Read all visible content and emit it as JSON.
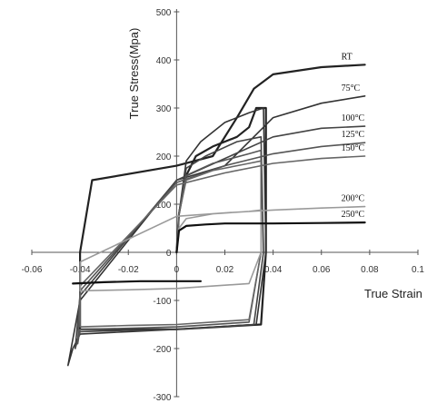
{
  "chart_data": {
    "type": "line",
    "title": "",
    "xlabel": "True Strain",
    "ylabel": "True Stress(Mpa)",
    "xlim": [
      -0.06,
      0.1
    ],
    "ylim": [
      -300,
      500
    ],
    "x_ticks": [
      -0.06,
      -0.04,
      -0.02,
      0,
      0.02,
      0.04,
      0.06,
      0.08,
      0.1
    ],
    "x_tick_labels": [
      "-0.06",
      "-0.04",
      "-0.02",
      "0",
      "0.02",
      "0.04",
      "0.06",
      "0.08",
      "0.1"
    ],
    "y_ticks": [
      -300,
      -200,
      -100,
      0,
      100,
      200,
      300,
      400,
      500
    ],
    "y_tick_labels": [
      "-300",
      "-200",
      "-100",
      "0",
      "100",
      "200",
      "300",
      "400",
      "500"
    ],
    "grid": false,
    "series": [
      {
        "name": "RT",
        "color": "#222222",
        "x": [
          0.0,
          0.001,
          0.004,
          0.008,
          0.015,
          0.025,
          0.03,
          0.033,
          0.037,
          0.037,
          0.035,
          0.0,
          -0.02,
          -0.04,
          -0.04,
          -0.035,
          0.0,
          0.015,
          0.025,
          0.032,
          0.04,
          0.06,
          0.078
        ],
        "y": [
          0.0,
          80.0,
          160.0,
          200.0,
          220.0,
          240.0,
          260.0,
          300.0,
          300.0,
          0.0,
          -150.0,
          -160.0,
          -160.0,
          -160.0,
          0.0,
          150.0,
          180.0,
          200.0,
          280.0,
          340.0,
          370.0,
          385.0,
          390.0
        ]
      },
      {
        "name": "75°C",
        "color": "#333333",
        "x": [
          0.0,
          0.001,
          0.004,
          0.01,
          0.02,
          0.03,
          0.036,
          0.037,
          0.033,
          0.0,
          -0.02,
          -0.04,
          -0.043,
          -0.045,
          -0.04,
          0.0,
          0.02,
          0.03,
          0.04,
          0.06,
          0.078
        ],
        "y": [
          0.0,
          80.0,
          190.0,
          230.0,
          270.0,
          290.0,
          300.0,
          0.0,
          -150.0,
          -160.0,
          -165.0,
          -170.0,
          -200.0,
          -235.0,
          -100.0,
          150.0,
          180.0,
          230.0,
          280.0,
          310.0,
          325.0
        ]
      },
      {
        "name": "100°C",
        "color": "#444444",
        "x": [
          0.0,
          0.001,
          0.004,
          0.012,
          0.025,
          0.035,
          0.036,
          0.032,
          0.0,
          -0.02,
          -0.04,
          -0.042,
          -0.04,
          0.0,
          0.02,
          0.04,
          0.06,
          0.078
        ],
        "y": [
          0.0,
          80.0,
          175.0,
          200.0,
          230.0,
          240.0,
          0.0,
          -150.0,
          -160.0,
          -162.0,
          -165.0,
          -200.0,
          -90.0,
          150.0,
          195.0,
          240.0,
          258.0,
          262.0
        ]
      },
      {
        "name": "125°C",
        "color": "#555555",
        "x": [
          0.0,
          0.001,
          0.004,
          0.015,
          0.03,
          0.035,
          0.035,
          0.03,
          0.0,
          -0.02,
          -0.04,
          -0.041,
          -0.04,
          0.0,
          0.02,
          0.04,
          0.06,
          0.078
        ],
        "y": [
          0.0,
          80.0,
          160.0,
          185.0,
          205.0,
          212.0,
          0.0,
          -145.0,
          -155.0,
          -158.0,
          -160.0,
          -190.0,
          -80.0,
          145.0,
          180.0,
          205.0,
          220.0,
          228.0
        ]
      },
      {
        "name": "150°C",
        "color": "#666666",
        "x": [
          0.0,
          0.001,
          0.004,
          0.015,
          0.03,
          0.035,
          0.035,
          0.03,
          0.0,
          -0.02,
          -0.04,
          -0.04,
          0.0,
          0.02,
          0.04,
          0.06,
          0.078
        ],
        "y": [
          0.0,
          80.0,
          150.0,
          170.0,
          185.0,
          190.0,
          0.0,
          -140.0,
          -150.0,
          -152.0,
          -155.0,
          -70.0,
          140.0,
          165.0,
          185.0,
          195.0,
          200.0
        ]
      },
      {
        "name": "200°C",
        "color": "#9a9a9a",
        "x": [
          0.0,
          0.001,
          0.004,
          0.015,
          0.03,
          0.035,
          0.035,
          0.03,
          0.0,
          -0.02,
          -0.04,
          -0.04,
          0.0,
          0.02,
          0.04,
          0.06,
          0.078
        ],
        "y": [
          0.0,
          50.0,
          70.0,
          80.0,
          85.0,
          88.0,
          0.0,
          -65.0,
          -75.0,
          -78.0,
          -80.0,
          -20.0,
          75.0,
          82.0,
          88.0,
          92.0,
          95.0
        ]
      },
      {
        "name": "250°C",
        "color": "#111111",
        "x": [
          0.0,
          0.001,
          0.004,
          0.012,
          0.02,
          0.04,
          0.06,
          0.078
        ],
        "y": [
          0.0,
          45.0,
          55.0,
          58.0,
          60.0,
          60.0,
          61.0,
          62.0
        ]
      },
      {
        "name": "",
        "color": "#111111",
        "x": [
          -0.043,
          -0.03,
          -0.015,
          0.0,
          0.01
        ],
        "y": [
          -65.0,
          -62.0,
          -60.0,
          -60.0,
          -60.0
        ]
      }
    ],
    "legend": "inline labels at right ends of curves"
  }
}
